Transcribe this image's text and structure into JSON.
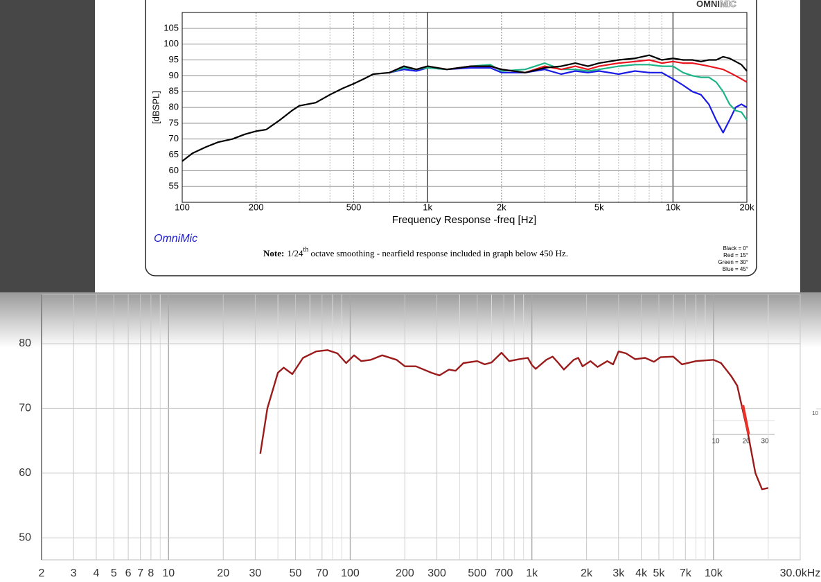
{
  "chart_data": [
    {
      "type": "line",
      "title": "OmniMic",
      "logo_bold": "OMNI",
      "logo_light": "MIC",
      "ylabel": "[dBSPL]",
      "xlabel": "Frequency Response -freq [Hz]",
      "note": {
        "label": "Note:",
        "text_before": "1/24",
        "superscript": "th",
        "text_after": " octave smoothing - nearfield response included in graph below 450 Hz."
      },
      "xscale": "log",
      "grid": true,
      "xlim": [
        100,
        20000
      ],
      "ylim": [
        50,
        110
      ],
      "yticks": [
        55,
        60,
        65,
        70,
        75,
        80,
        85,
        90,
        95,
        100,
        105
      ],
      "xticks": [
        100,
        200,
        500,
        {
          "value": 1000,
          "label": "1k"
        },
        {
          "value": 2000,
          "label": "2k"
        },
        {
          "value": 5000,
          "label": "5k"
        },
        {
          "value": 10000,
          "label": "10k"
        },
        {
          "value": 20000,
          "label": "20k"
        }
      ],
      "major_xgrid": [
        1000,
        10000
      ],
      "minor_xgrid": [
        300,
        400,
        600,
        700,
        800,
        900,
        3000,
        4000,
        6000,
        7000,
        8000,
        9000
      ],
      "legend": "lower right",
      "x": [
        100,
        110,
        125,
        140,
        160,
        180,
        200,
        220,
        250,
        280,
        300,
        350,
        400,
        450,
        500,
        550,
        600,
        700,
        800,
        900,
        1000,
        1200,
        1500,
        1800,
        2000,
        2500,
        3000,
        3500,
        4000,
        4500,
        5000,
        6000,
        7000,
        8000,
        9000,
        10000,
        11000,
        12000,
        13000,
        14000,
        15000,
        16000,
        17000,
        18000,
        19000,
        20000
      ],
      "series": [
        {
          "name": "Black = 0°",
          "color": "#000000",
          "values": [
            63,
            65.5,
            67.5,
            69,
            70,
            71.5,
            72.5,
            73,
            76,
            79,
            80.5,
            81.5,
            84,
            86,
            87.5,
            89,
            90.5,
            91,
            93,
            92,
            93,
            92,
            93,
            93,
            92,
            91,
            92.5,
            93,
            94,
            93,
            94,
            95,
            95.5,
            96.5,
            95,
            95.5,
            95,
            95,
            94.5,
            95,
            95,
            96,
            95.5,
            94.5,
            93.5,
            91.5
          ]
        },
        {
          "name": "Red = 15°",
          "color": "#e8141e",
          "values": [
            null,
            null,
            null,
            null,
            null,
            null,
            null,
            null,
            null,
            null,
            null,
            null,
            null,
            null,
            null,
            null,
            null,
            91,
            93,
            92,
            93,
            92,
            93,
            93,
            92,
            91,
            93,
            92,
            93,
            92,
            93,
            94,
            94.5,
            95,
            94,
            94.5,
            94,
            94,
            93.5,
            93,
            92.5,
            92,
            91,
            90,
            89,
            88
          ]
        },
        {
          "name": "Green = 30°",
          "color": "#1cb487",
          "values": [
            null,
            null,
            null,
            null,
            null,
            null,
            null,
            null,
            null,
            null,
            null,
            null,
            null,
            null,
            null,
            null,
            null,
            91,
            92.5,
            92,
            92.5,
            92,
            93,
            93.5,
            91.5,
            92,
            94,
            92,
            92,
            91.5,
            92,
            93,
            93.5,
            93.5,
            93,
            93,
            91,
            90,
            89.5,
            89.5,
            88,
            85,
            81,
            79,
            78.5,
            76
          ]
        },
        {
          "name": "Blue = 45°",
          "color": "#1a1ae6",
          "values": [
            null,
            null,
            null,
            null,
            null,
            null,
            null,
            null,
            null,
            null,
            null,
            null,
            null,
            null,
            null,
            null,
            null,
            91,
            92,
            91.5,
            92.5,
            92,
            92.5,
            92.5,
            91,
            91,
            92,
            90.5,
            91.5,
            91,
            91.5,
            90.5,
            91.5,
            91,
            91,
            89,
            87,
            85,
            84,
            81,
            76,
            72,
            76,
            80,
            81,
            80
          ]
        }
      ]
    },
    {
      "type": "line",
      "xscale": "log",
      "grid": true,
      "xlim": [
        2,
        30000
      ],
      "ylim": [
        46.6,
        87.6
      ],
      "yticks": [
        50,
        60,
        70,
        80
      ],
      "xticks": [
        2,
        3,
        4,
        5,
        6,
        7,
        8,
        10,
        20,
        30,
        50,
        70,
        100,
        200,
        300,
        500,
        700,
        {
          "value": 1000,
          "label": "1k"
        },
        {
          "value": 2000,
          "label": "2k"
        },
        {
          "value": 3000,
          "label": "3k"
        },
        {
          "value": 4000,
          "label": "4k"
        },
        {
          "value": 5000,
          "label": "5k"
        },
        {
          "value": 7000,
          "label": "7k"
        },
        {
          "value": 10000,
          "label": "10k"
        },
        {
          "value": 30000,
          "label": "30.0kHz"
        }
      ],
      "major_xgrid": [
        10,
        100,
        1000,
        10000
      ],
      "minor_xgrid": [
        9,
        40,
        60,
        80,
        90,
        400,
        600,
        800,
        900,
        6000,
        8000,
        9000,
        20000
      ],
      "color": "#9b1b1b",
      "x": [
        32,
        35,
        40,
        43,
        48,
        55,
        65,
        75,
        85,
        95,
        105,
        115,
        130,
        150,
        180,
        200,
        230,
        280,
        310,
        350,
        380,
        420,
        500,
        550,
        600,
        680,
        750,
        850,
        950,
        1000,
        1050,
        1200,
        1300,
        1400,
        1500,
        1700,
        1800,
        1900,
        2100,
        2300,
        2600,
        2800,
        3000,
        3300,
        3700,
        4200,
        4700,
        5100,
        6000,
        6700,
        8000,
        10000,
        11000,
        12500,
        13500,
        15500,
        17000,
        18500,
        20000
      ],
      "values": [
        63,
        70,
        75.5,
        76.3,
        75.3,
        77.8,
        78.8,
        79,
        78.5,
        77,
        78.2,
        77.3,
        77.5,
        78.2,
        77.5,
        76.5,
        76.5,
        75.5,
        75.1,
        76,
        75.8,
        77,
        77.3,
        76.8,
        77.1,
        78.6,
        77.3,
        77.6,
        77.8,
        76.7,
        76.1,
        77.5,
        78,
        77,
        76,
        77.5,
        77.8,
        76.5,
        77.3,
        76.4,
        77.3,
        76.8,
        78.8,
        78.5,
        77.6,
        77.8,
        77.2,
        77.9,
        78,
        76.8,
        77.3,
        77.5,
        77,
        75,
        73.5,
        66,
        60,
        57.5,
        57.7
      ],
      "highlight": {
        "color": "#e8322a",
        "x": [
          14500,
          15600
        ],
        "values": [
          70.5,
          66
        ]
      },
      "inset_xticks": [
        "10",
        "20",
        "30"
      ],
      "edge_label": "10"
    }
  ]
}
